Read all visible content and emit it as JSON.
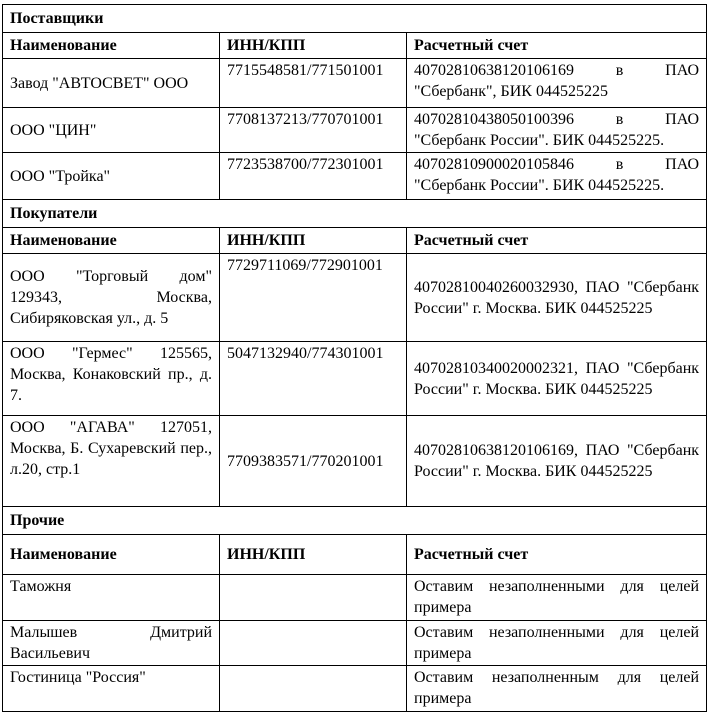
{
  "sections": [
    {
      "title": "Поставщики",
      "headers": [
        "Наименование",
        "ИНН/КПП",
        "Расчетный счет"
      ],
      "rows": [
        {
          "name": "Завод \"АВТОСВЕТ\" ООО",
          "inn": "7715548581/771501001",
          "account": "40702810638120106169 в ПАО \"Сбербанк\", БИК 044525225"
        },
        {
          "name": "ООО \"ЦИН\"",
          "inn": "7708137213/770701001",
          "account": "40702810438050100396 в ПАО \"Сбербанк России\". БИК 044525225."
        },
        {
          "name": "ООО \"Тройка\"",
          "inn": "7723538700/772301001",
          "account": "40702810900020105846 в ПАО \"Сбербанк России\". БИК 044525225."
        }
      ]
    },
    {
      "title": "Покупатели",
      "headers": [
        "Наименование",
        "ИНН/КПП",
        "Расчетный счет"
      ],
      "rows": [
        {
          "name": "ООО \"Торговый дом\" 129343, Москва, Сибиряковская ул., д. 5",
          "inn": "7729711069/772901001",
          "account": "40702810040260032930, ПАО \"Сбербанк России\" г. Москва. БИК 044525225"
        },
        {
          "name": "ООО \"Гермес\" 125565, Москва, Конаковский пр., д. 7.",
          "inn": "5047132940/774301001",
          "account": "40702810340020002321, ПАО \"Сбербанк России\" г. Москва. БИК 044525225"
        },
        {
          "name": "ООО \"АГАВА\" 127051, Москва, Б. Сухаревский пер., л.20, стр.1",
          "inn": "7709383571/770201001",
          "account": "40702810638120106169, ПАО \"Сбербанк России\" г. Москва. БИК 044525225"
        }
      ]
    },
    {
      "title": "Прочие",
      "headers": [
        "Наименование",
        "ИНН/КПП",
        "Расчетный счет"
      ],
      "rows": [
        {
          "name": "Таможня",
          "inn": "",
          "account": "Оставим незаполненными для целей примера"
        },
        {
          "name": "Малышев Дмитрий Васильевич",
          "inn": "",
          "account": "Оставим незаполненными для целей примера"
        },
        {
          "name": "Гостиница \"Россия\"",
          "inn": "",
          "account": "Оставим незаполненным для целей примера"
        }
      ]
    }
  ]
}
